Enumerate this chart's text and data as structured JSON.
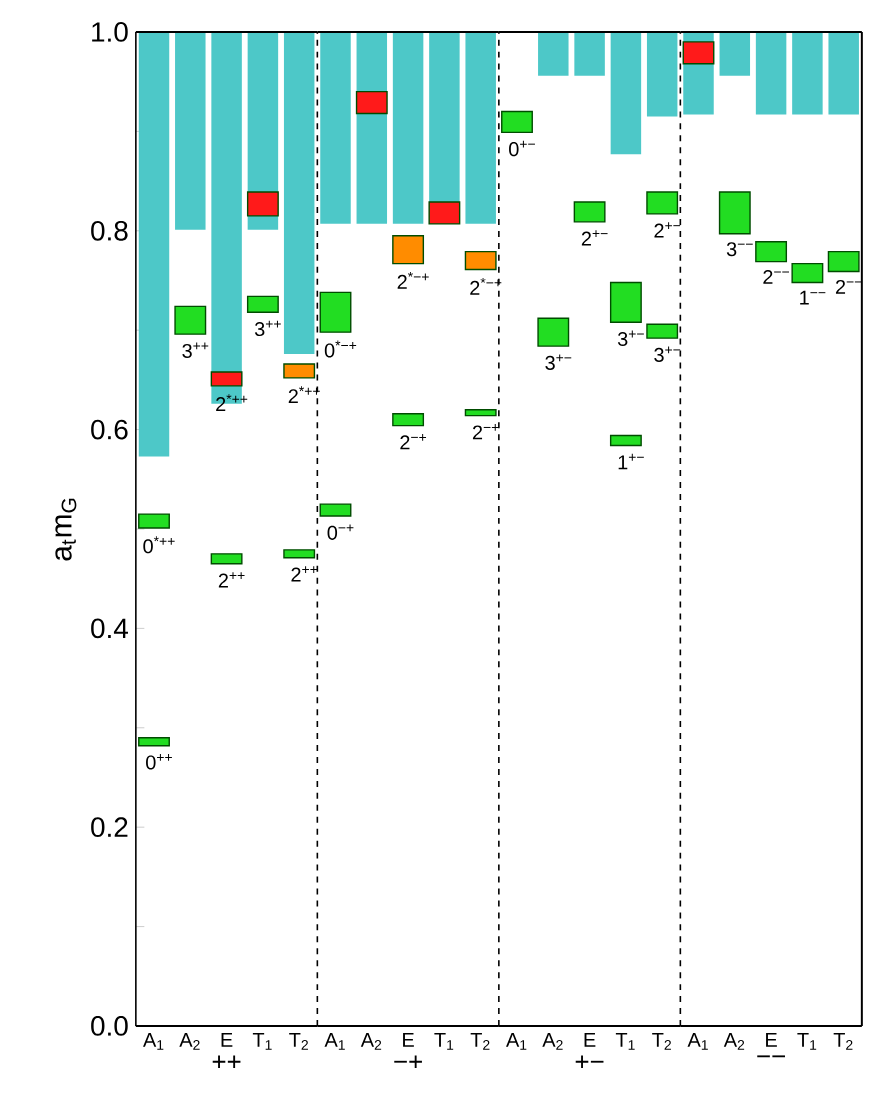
{
  "chart_data": [
    {
      "type": "bar",
      "xlabel": "++",
      "categories": [
        "A$_{1}$",
        "A$_{2}$",
        "E",
        "T$_{1}$",
        "T$_{2}$"
      ],
      "series": [
        {
          "color": "#4dc8c8",
          "base": [
            0.573,
            0.801,
            0.626,
            0.801,
            0.676
          ],
          "values": [
            0.427,
            0.199,
            0.374,
            0.199,
            0.324
          ]
        },
        {
          "color": "#22dd22",
          "base": [
            0.501,
            0.696,
            0.465,
            0.718,
            0.471
          ],
          "values": [
            0.014,
            0.028,
            0.01,
            0.016,
            0.008
          ]
        },
        {
          "color": "#22dd22",
          "base": [
            0.282,
            null,
            null,
            null,
            null
          ],
          "values": [
            0.008,
            null,
            null,
            null,
            null
          ]
        },
        {
          "color": "#ff8c00",
          "base": [
            null,
            null,
            null,
            null,
            0.652
          ],
          "values": [
            null,
            null,
            null,
            null,
            0.014
          ]
        },
        {
          "color": "#ff1a1a",
          "base": [
            null,
            null,
            0.644,
            0.815,
            null
          ],
          "values": [
            null,
            null,
            0.014,
            0.024,
            null
          ]
        }
      ],
      "ylim": [
        0,
        1
      ],
      "yticks": [
        {
          "value": 0,
          "label": "0.0"
        },
        {
          "value": 0.1,
          "label": null
        },
        {
          "value": 0.2,
          "label": "0.2"
        },
        {
          "value": 0.3,
          "label": null
        },
        {
          "value": 0.4,
          "label": "0.4"
        },
        {
          "value": 0.5,
          "label": null
        },
        {
          "value": 0.6,
          "label": "0.6"
        },
        {
          "value": 0.7,
          "label": null
        },
        {
          "value": 0.8,
          "label": "0.8"
        },
        {
          "value": 0.9,
          "label": null
        },
        {
          "value": 1.0,
          "label": "1.0"
        }
      ],
      "ylabel": "a$_{t}$m$_{G}$",
      "annotations": [
        {
          "text": "0$^{*++}$",
          "x": "A$_{1}$",
          "y": 0.501
        },
        {
          "text": "3$^{++}$",
          "x": "A$_{2}$",
          "y": 0.696
        },
        {
          "text": "2$^{++}$",
          "x": "E",
          "y": 0.465
        },
        {
          "text": "3$^{++}$",
          "x": "T$_{1}$",
          "y": 0.718
        },
        {
          "text": "2$^{++}$",
          "x": "T$_{2}$",
          "y": 0.471
        },
        {
          "text": "0$^{++}$",
          "x": "A$_{1}$",
          "y": 0.282
        },
        {
          "text": "2$^{*++}$",
          "x": "T$_{2}$",
          "y": 0.652
        },
        {
          "text": "2$^{*++}$",
          "x": "E",
          "y": 0.644
        }
      ]
    },
    {
      "type": "bar",
      "xlabel": "−+",
      "categories": [
        "A$_{1}$",
        "A$_{2}$",
        "E",
        "T$_{1}$",
        "T$_{2}$"
      ],
      "tick_labels": "x",
      "series": [
        {
          "color": "#4dc8c8",
          "base": [
            0.807,
            0.807,
            0.807,
            0.807,
            0.807
          ],
          "values": [
            0.193,
            0.193,
            0.193,
            0.193,
            0.193
          ]
        },
        {
          "color": "#22dd22",
          "base": [
            0.698,
            null,
            0.604,
            null,
            0.614
          ],
          "values": [
            0.04,
            null,
            0.012,
            null,
            0.006
          ]
        },
        {
          "color": "#22dd22",
          "base": [
            0.513,
            null,
            null,
            null,
            null
          ],
          "values": [
            0.012,
            null,
            null,
            null,
            null
          ]
        },
        {
          "color": "#ff8c00",
          "base": [
            null,
            null,
            0.767,
            null,
            0.761
          ],
          "values": [
            null,
            null,
            0.028,
            null,
            0.018
          ]
        },
        {
          "color": "#ff1a1a",
          "base": [
            null,
            0.918,
            null,
            0.807,
            null
          ],
          "values": [
            null,
            0.022,
            null,
            0.022,
            null
          ]
        }
      ],
      "ylim": [
        0,
        1
      ],
      "annotations": [
        {
          "text": "0$^{*−+}$",
          "x": "A$_{1}$",
          "y": 0.698
        },
        {
          "text": "2$^{−+}$",
          "x": "E",
          "y": 0.604
        },
        {
          "text": "2$^{−+}$",
          "x": "T$_{2}$",
          "y": 0.614
        },
        {
          "text": "0$^{−+}$",
          "x": "A$_{1}$",
          "y": 0.513
        },
        {
          "text": "2$^{*−+}$",
          "x": "E",
          "y": 0.767
        },
        {
          "text": "2$^{*−+}$",
          "x": "T$_{2}$",
          "y": 0.761
        }
      ]
    },
    {
      "type": "bar",
      "xlabel": "+−",
      "categories": [
        "A$_{1}$",
        "A$_{2}$",
        "E",
        "T$_{1}$",
        "T$_{2}$"
      ],
      "tick_labels": "x",
      "series": [
        {
          "color": "#4dc8c8",
          "base": [
            null,
            0.956,
            0.956,
            0.877,
            0.915
          ],
          "values": [
            null,
            0.044,
            0.044,
            0.123,
            0.085
          ]
        },
        {
          "color": "#22dd22",
          "base": [
            0.899,
            0.684,
            0.809,
            0.708,
            0.817
          ],
          "values": [
            0.021,
            0.028,
            0.02,
            0.04,
            0.022
          ]
        },
        {
          "color": "#22dd22",
          "base": [
            null,
            null,
            null,
            0.584,
            0.692
          ],
          "values": [
            null,
            null,
            null,
            0.01,
            0.014
          ]
        }
      ],
      "ylim": [
        0,
        1
      ],
      "annotations": [
        {
          "text": "0$^{+−}$",
          "x": "A$_{1}$",
          "y": 0.899
        },
        {
          "text": "3$^{+−}$",
          "x": "A$_{2}$",
          "y": 0.684
        },
        {
          "text": "2$^{+−}$",
          "x": "E",
          "y": 0.809
        },
        {
          "text": "3$^{+−}$",
          "x": "T$_{1}$",
          "y": 0.708
        },
        {
          "text": "2$^{+−}$",
          "x": "T$_{2}$",
          "y": 0.817
        },
        {
          "text": "1$^{+−}$",
          "x": "T$_{1}$",
          "y": 0.584
        },
        {
          "text": "3$^{+−}$",
          "x": "T$_{2}$",
          "y": 0.692
        }
      ]
    },
    {
      "type": "bar",
      "xlabel": "−−",
      "categories": [
        "A$_{1}$",
        "A$_{2}$",
        "E",
        "T$_{1}$",
        "T$_{2}$"
      ],
      "tick_labels": "x",
      "series": [
        {
          "color": "#4dc8c8",
          "base": [
            0.917,
            0.956,
            0.917,
            0.917,
            0.917
          ],
          "values": [
            0.083,
            0.044,
            0.083,
            0.083,
            0.083
          ]
        },
        {
          "color": "#22dd22",
          "base": [
            null,
            0.797,
            0.769,
            0.748,
            0.759
          ],
          "values": [
            null,
            0.042,
            0.02,
            0.019,
            0.02
          ]
        },
        {
          "color": "#ff1a1a",
          "base": [
            0.968,
            null,
            null,
            null,
            null
          ],
          "values": [
            0.022,
            null,
            null,
            null,
            null
          ]
        }
      ],
      "ylim": [
        0,
        1
      ],
      "annotations": [
        {
          "text": "3$^{−−}$",
          "x": "A$_{2}$",
          "y": 0.797
        },
        {
          "text": "2$^{−−}$",
          "x": "E",
          "y": 0.769
        },
        {
          "text": "1$^{−−}$",
          "x": "T$_{1}$",
          "y": 0.748
        },
        {
          "text": "2$^{−−}$",
          "x": "T$_{2}$",
          "y": 0.759
        }
      ]
    }
  ]
}
